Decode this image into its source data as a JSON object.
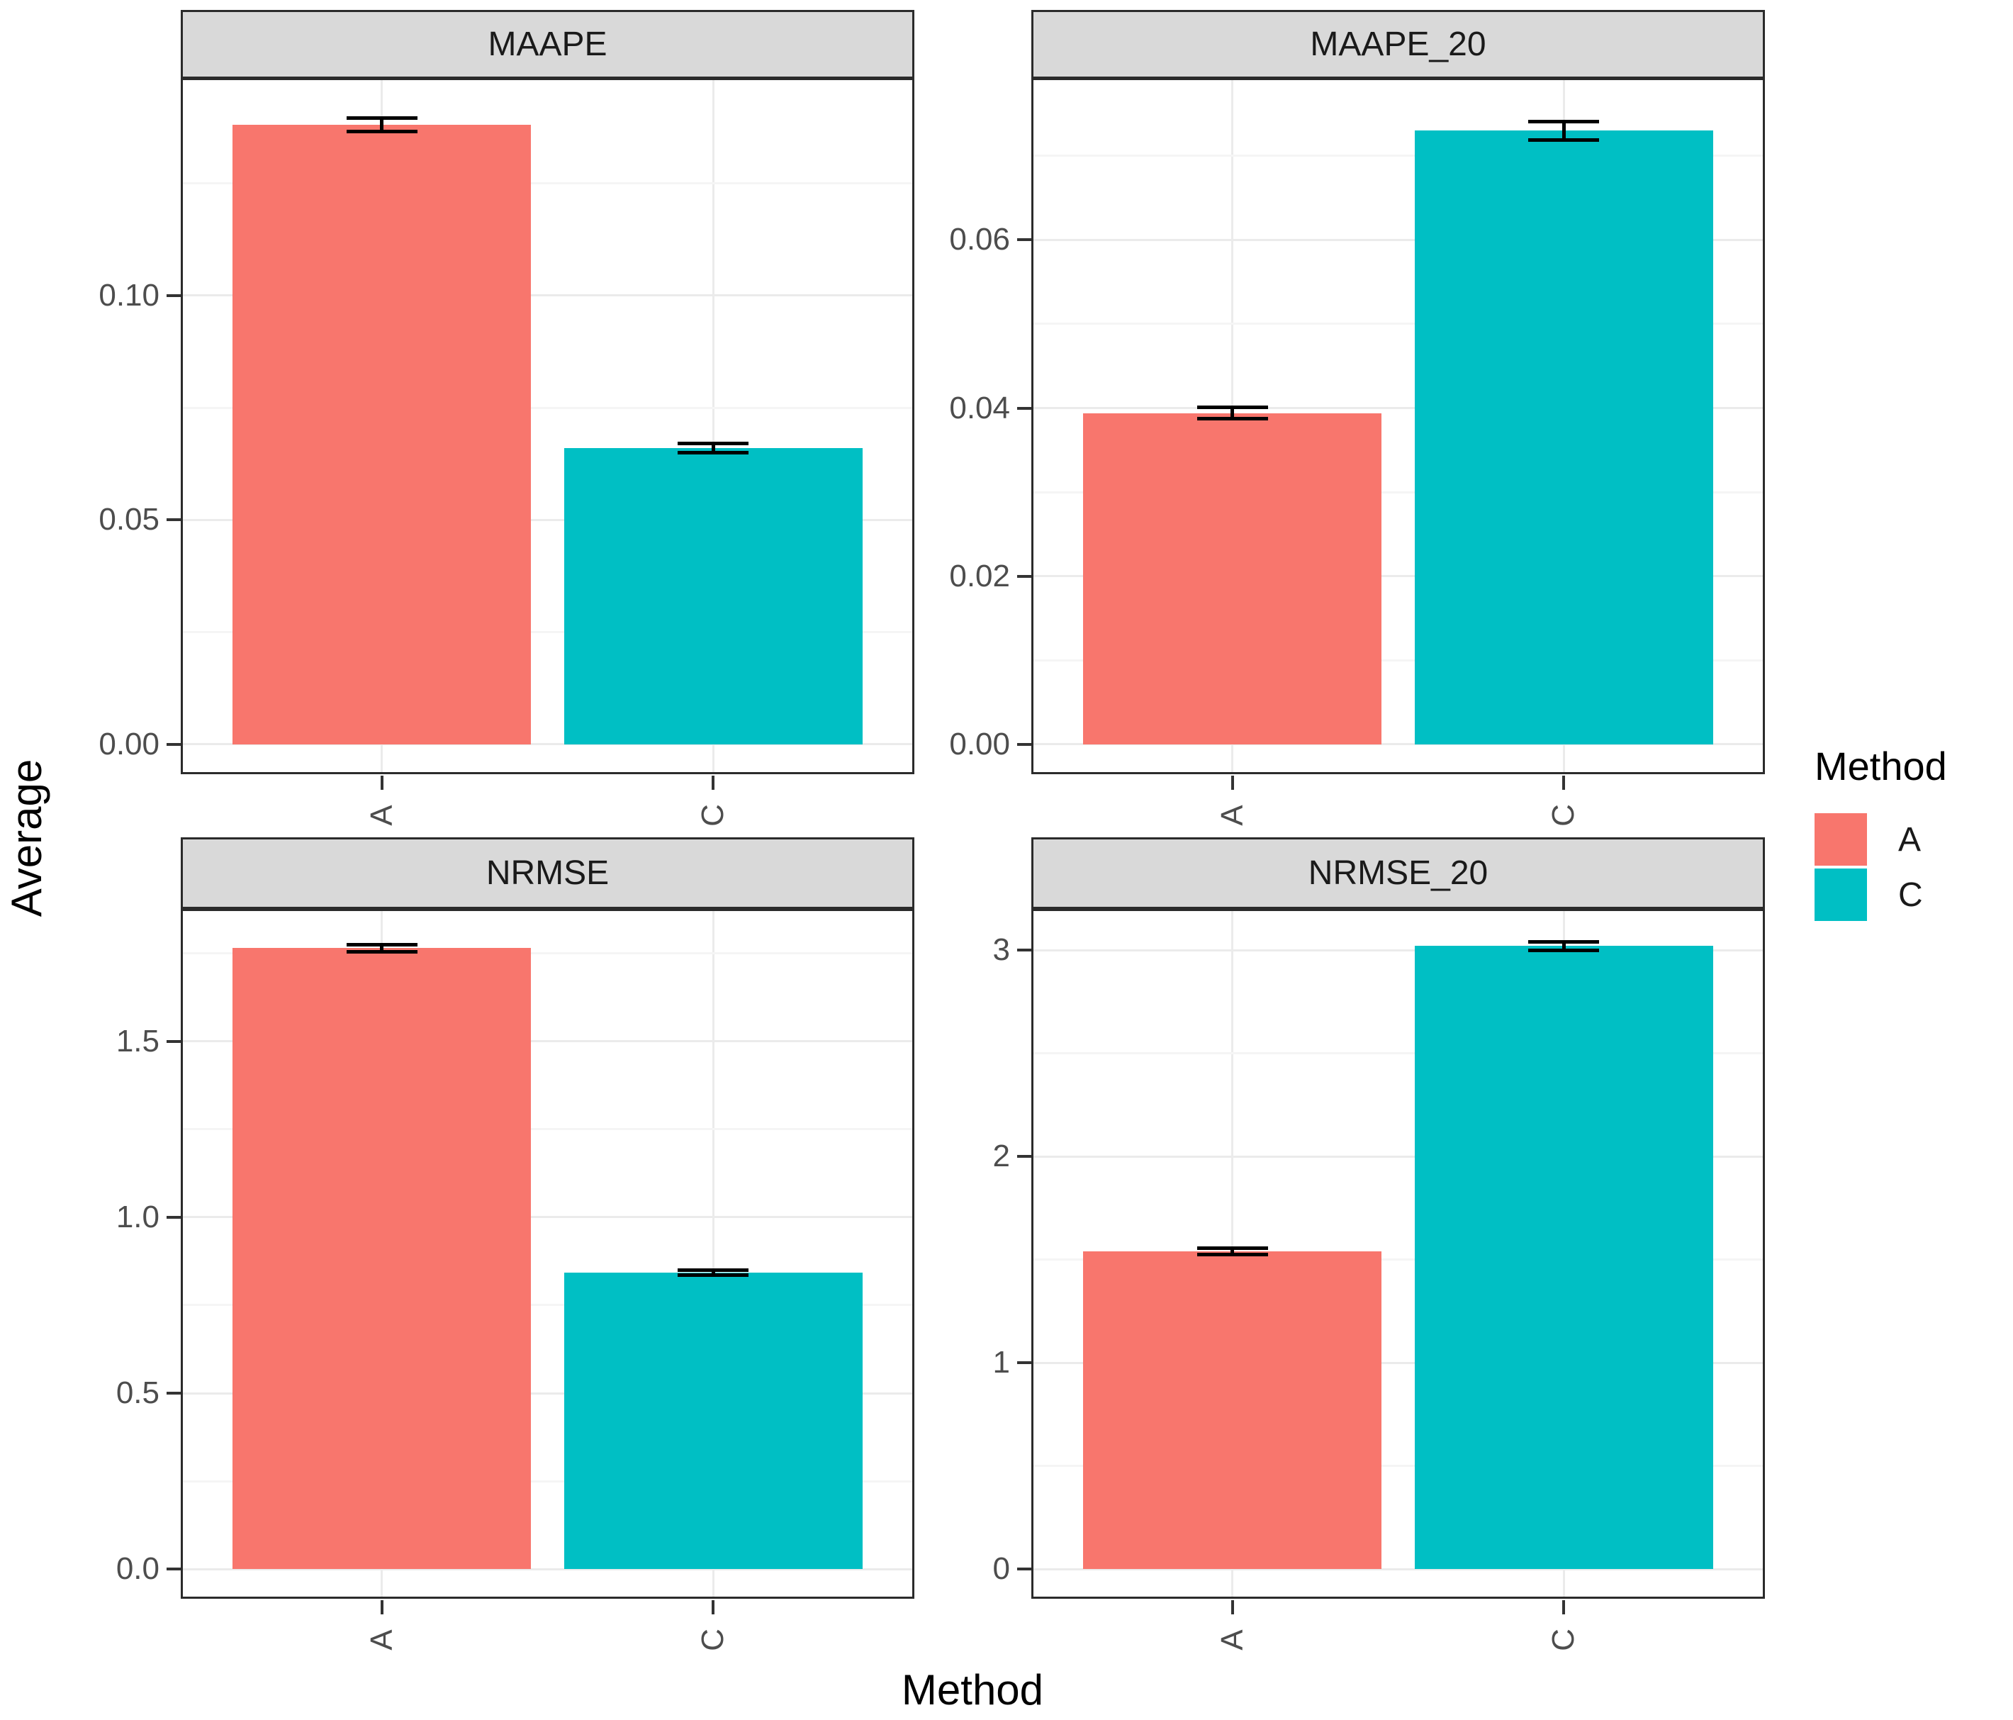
{
  "figure": {
    "y_axis_title": "Average",
    "x_axis_title": "Method",
    "legend": {
      "title": "Method",
      "position": "right",
      "items": [
        {
          "label": "A",
          "color": "#F8766D"
        },
        {
          "label": "C",
          "color": "#00BFC4"
        }
      ]
    }
  },
  "style": {
    "strip_bg": "#D9D9D9",
    "panel_border": "#2B2B2B",
    "grid_major": "#EBEBEB",
    "grid_minor": "#F5F5F5",
    "tick_text_color": "#4D4D4D",
    "error_bar_color": "#000000"
  },
  "chart_data": [
    {
      "type": "bar",
      "title": "MAAPE",
      "categories": [
        "A",
        "C"
      ],
      "values": [
        0.138,
        0.066
      ],
      "errors": [
        0.0015,
        0.001
      ],
      "ylim": [
        0,
        0.148
      ],
      "yticks": [
        0,
        0.05,
        0.1
      ],
      "ytick_labels": [
        "0.00",
        "0.05",
        "0.10"
      ],
      "bar_colors": [
        "#F8766D",
        "#00BFC4"
      ],
      "grid": true,
      "legend_position": "none"
    },
    {
      "type": "bar",
      "title": "MAAPE_20",
      "categories": [
        "A",
        "C"
      ],
      "values": [
        0.0394,
        0.073
      ],
      "errors": [
        0.0007,
        0.0011
      ],
      "ylim": [
        0,
        0.079
      ],
      "yticks": [
        0,
        0.02,
        0.04,
        0.06
      ],
      "ytick_labels": [
        "0.00",
        "0.02",
        "0.04",
        "0.06"
      ],
      "bar_colors": [
        "#F8766D",
        "#00BFC4"
      ],
      "grid": true,
      "legend_position": "none"
    },
    {
      "type": "bar",
      "title": "NRMSE",
      "categories": [
        "A",
        "C"
      ],
      "values": [
        1.765,
        0.843
      ],
      "errors": [
        0.01,
        0.007
      ],
      "ylim": [
        0,
        1.87
      ],
      "yticks": [
        0,
        0.5,
        1,
        1.5
      ],
      "ytick_labels": [
        "0.0",
        "0.5",
        "1.0",
        "1.5"
      ],
      "bar_colors": [
        "#F8766D",
        "#00BFC4"
      ],
      "grid": true,
      "legend_position": "none"
    },
    {
      "type": "bar",
      "title": "NRMSE_20",
      "categories": [
        "A",
        "C"
      ],
      "values": [
        1.54,
        3.02
      ],
      "errors": [
        0.015,
        0.022
      ],
      "ylim": [
        0,
        3.19
      ],
      "yticks": [
        0,
        1,
        2,
        3
      ],
      "ytick_labels": [
        "0",
        "1",
        "2",
        "3"
      ],
      "bar_colors": [
        "#F8766D",
        "#00BFC4"
      ],
      "grid": true,
      "legend_position": "none"
    }
  ]
}
